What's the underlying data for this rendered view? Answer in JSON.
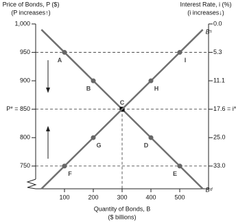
{
  "chart_data": {
    "type": "line",
    "y_label": "Price of Bonds, P ($)",
    "y_label_note": "(P increases↑)",
    "y2_label": "Interest Rate, i (%)",
    "y2_label_note": "(i increases↓)",
    "x_label": "Quantity of Bonds, B",
    "x_label_note": "($ billions)",
    "xlim": [
      0,
      600
    ],
    "xticks": [
      100,
      200,
      300,
      400,
      500
    ],
    "ylim": [
      710,
      1000
    ],
    "yticks": [
      {
        "value": 1000,
        "label": "1,000"
      },
      950,
      900,
      {
        "value": 850,
        "label": "P* = 850"
      },
      800,
      750
    ],
    "y2ticks": [
      {
        "value": 0,
        "label": "0.0"
      },
      5.3,
      11.1,
      {
        "value": 17.6,
        "label": "17.6 = i*"
      },
      {
        "value": 25,
        "label": "25.0"
      },
      {
        "value": 33,
        "label": "33.0"
      }
    ],
    "x": [
      100,
      200,
      300,
      400,
      500
    ],
    "series": [
      {
        "name": "Bᵈ",
        "color": "#707070",
        "values": [
          950,
          900,
          850,
          800,
          750
        ],
        "labels": [
          "A",
          "B",
          "C",
          "D",
          "E"
        ]
      },
      {
        "name": "Bˢ",
        "color": "#707070",
        "values": [
          750,
          800,
          850,
          900,
          950
        ],
        "labels": [
          "F",
          "G",
          null,
          "H",
          "I"
        ]
      }
    ]
  }
}
